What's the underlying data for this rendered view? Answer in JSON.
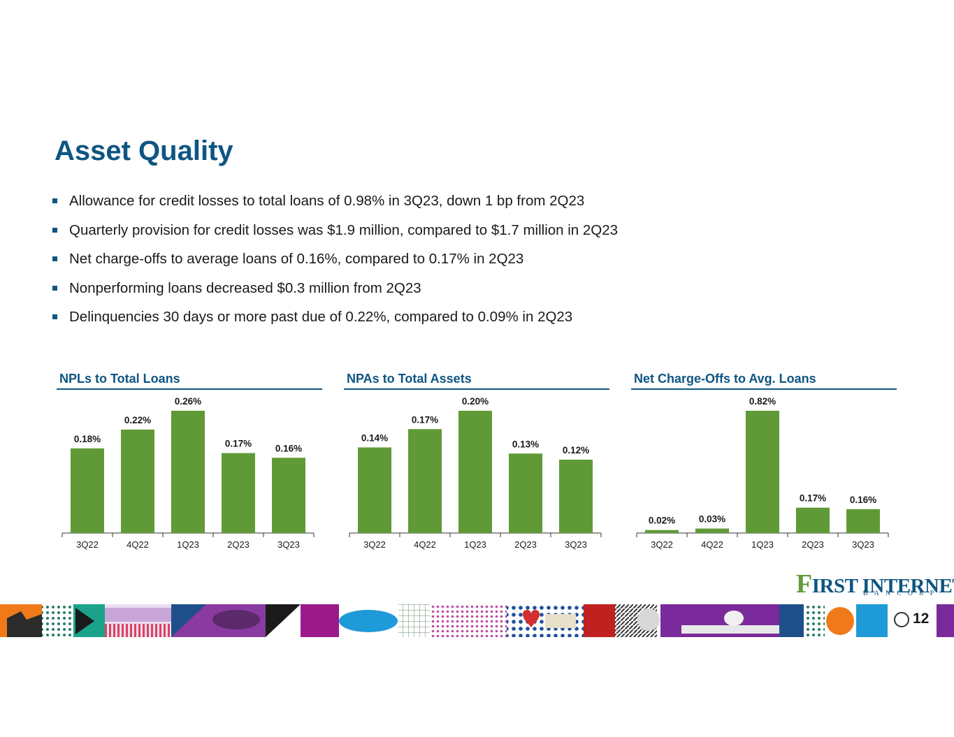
{
  "slide": {
    "title": "Asset Quality",
    "page_number": "12",
    "bullets": [
      "Allowance for credit losses to total loans of 0.98% in 3Q23, down 1 bp from 2Q23",
      "Quarterly provision for credit losses was $1.9 million, compared to $1.7 million in 2Q23",
      "Net charge-offs to average loans of 0.16%, compared to 0.17% in 2Q23",
      "Nonperforming loans decreased $0.3 million from 2Q23",
      "Delinquencies 30 days or more past due of 0.22%, compared to 0.09% in 2Q23"
    ]
  },
  "logo": {
    "initial": "F",
    "rest": "IRST INTERNET",
    "sub": "BANCORP"
  },
  "colors": {
    "brand_blue": "#0e5582",
    "bar_green": "#5f9a37"
  },
  "chart_data": [
    {
      "type": "bar",
      "title": "NPLs to Total Loans",
      "categories": [
        "3Q22",
        "4Q22",
        "1Q23",
        "2Q23",
        "3Q23"
      ],
      "values": [
        0.18,
        0.22,
        0.26,
        0.17,
        0.16
      ],
      "labels": [
        "0.18%",
        "0.22%",
        "0.26%",
        "0.17%",
        "0.16%"
      ],
      "xlabel": "",
      "ylabel": "",
      "grid": false
    },
    {
      "type": "bar",
      "title": "NPAs to Total Assets",
      "categories": [
        "3Q22",
        "4Q22",
        "1Q23",
        "2Q23",
        "3Q23"
      ],
      "values": [
        0.14,
        0.17,
        0.2,
        0.13,
        0.12
      ],
      "labels": [
        "0.14%",
        "0.17%",
        "0.20%",
        "0.13%",
        "0.12%"
      ],
      "xlabel": "",
      "ylabel": "",
      "grid": false
    },
    {
      "type": "bar",
      "title": "Net Charge-Offs to Avg. Loans",
      "categories": [
        "3Q22",
        "4Q22",
        "1Q23",
        "2Q23",
        "3Q23"
      ],
      "values": [
        0.02,
        0.03,
        0.82,
        0.17,
        0.16
      ],
      "labels": [
        "0.02%",
        "0.03%",
        "0.82%",
        "0.17%",
        "0.16%"
      ],
      "xlabel": "",
      "ylabel": "",
      "grid": false
    }
  ]
}
